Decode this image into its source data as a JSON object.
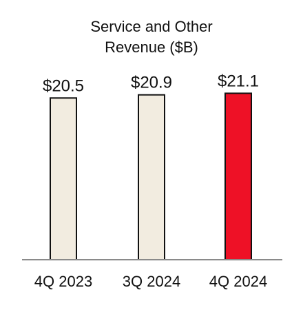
{
  "chart_data": {
    "type": "bar",
    "title_lines": [
      "Service and Other",
      "Revenue ($B)"
    ],
    "categories": [
      "4Q 2023",
      "3Q 2024",
      "4Q 2024"
    ],
    "values": [
      20.5,
      20.9,
      21.1
    ],
    "value_labels": [
      "$20.5",
      "$20.9",
      "$21.1"
    ],
    "bar_colors": [
      "#f2ece0",
      "#f2ece0",
      "#ee1126"
    ],
    "bar_outline_color": "#111111",
    "axis_color": "#8a8a8a",
    "xlabel": "",
    "ylabel": "",
    "grid": false,
    "legend": "none"
  }
}
